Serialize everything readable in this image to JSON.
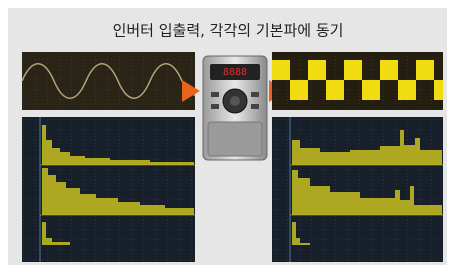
{
  "header": {
    "title": "인버터 입출력, 각각의 기본파에 동기"
  }
}
